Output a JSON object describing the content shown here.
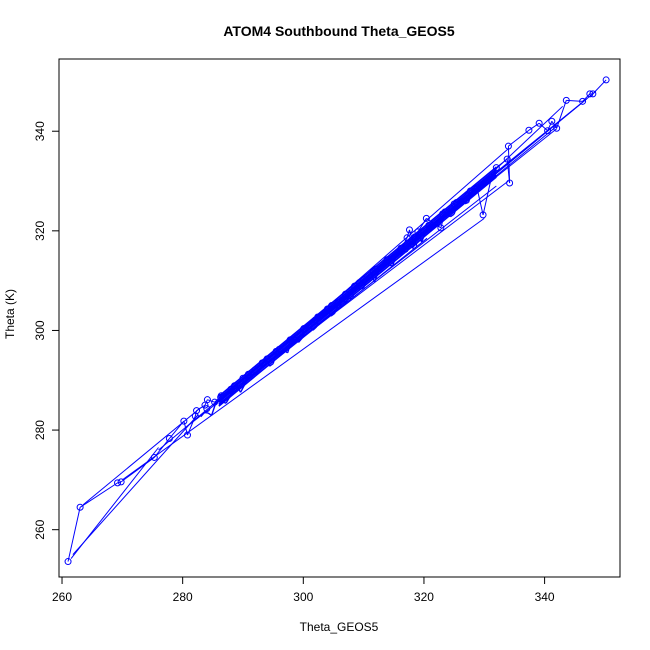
{
  "chart_data": {
    "type": "scatter",
    "title": "ATOM4 Southbound Theta_GEOS5",
    "xlabel": "Theta_GEOS5",
    "ylabel": "Theta (K)",
    "xlim": [
      259.5,
      352.5
    ],
    "ylim": [
      250.5,
      354.5
    ],
    "xticks": [
      260,
      280,
      300,
      320,
      340
    ],
    "yticks": [
      260,
      280,
      300,
      320,
      340
    ],
    "grid": false,
    "legend": "none",
    "style": "points connected by lines (type='o')",
    "color": "#0000ff",
    "points": [
      [
        261.0,
        253.6
      ],
      [
        263.0,
        264.5
      ],
      [
        269.2,
        269.4
      ],
      [
        269.8,
        269.6
      ],
      [
        275.3,
        274.5
      ],
      [
        277.8,
        278.3
      ],
      [
        280.2,
        281.8
      ],
      [
        280.8,
        279.0
      ],
      [
        282.1,
        282.8
      ],
      [
        282.3,
        283.9
      ],
      [
        283.7,
        285.0
      ],
      [
        284.1,
        286.1
      ],
      [
        285.3,
        285.6
      ],
      [
        286.4,
        286.9
      ],
      [
        288.0,
        288.2
      ],
      [
        290.0,
        290.4
      ],
      [
        292.0,
        292.1
      ],
      [
        294.0,
        294.3
      ],
      [
        296.0,
        296.2
      ],
      [
        298.0,
        298.0
      ],
      [
        300.0,
        300.2
      ],
      [
        302.0,
        302.1
      ],
      [
        304.0,
        304.3
      ],
      [
        305.8,
        305.6
      ],
      [
        307.8,
        307.0
      ],
      [
        308.5,
        308.9
      ],
      [
        310.0,
        310.2
      ],
      [
        312.0,
        312.3
      ],
      [
        314.0,
        314.2
      ],
      [
        316.0,
        315.8
      ],
      [
        317.2,
        318.6
      ],
      [
        317.6,
        320.2
      ],
      [
        318.3,
        317.1
      ],
      [
        319.0,
        319.8
      ],
      [
        320.4,
        322.5
      ],
      [
        322.8,
        320.6
      ],
      [
        323.5,
        323.8
      ],
      [
        325.0,
        325.4
      ],
      [
        327.3,
        327.2
      ],
      [
        328.8,
        328.6
      ],
      [
        329.8,
        323.2
      ],
      [
        331.2,
        330.8
      ],
      [
        332.0,
        332.7
      ],
      [
        333.8,
        334.4
      ],
      [
        334.2,
        329.6
      ],
      [
        334.0,
        337.0
      ],
      [
        337.4,
        340.2
      ],
      [
        339.1,
        341.6
      ],
      [
        340.5,
        340.1
      ],
      [
        341.2,
        342.0
      ],
      [
        342.0,
        340.6
      ],
      [
        343.6,
        346.2
      ],
      [
        346.3,
        346.0
      ],
      [
        347.5,
        347.5
      ],
      [
        348.0,
        347.5
      ],
      [
        350.2,
        350.3
      ]
    ],
    "extra_segments": [
      [
        261.5,
        254.2,
        276.0,
        276.5
      ],
      [
        261.8,
        255.0,
        282.5,
        283.0
      ],
      [
        263.5,
        265.0,
        283.0,
        284.5
      ],
      [
        270.0,
        270.0,
        330.0,
        322.5
      ],
      [
        281.0,
        281.0,
        332.0,
        329.0
      ],
      [
        285.0,
        285.0,
        334.0,
        330.0
      ],
      [
        300.0,
        300.0,
        342.0,
        340.5
      ],
      [
        310.0,
        309.5,
        346.0,
        345.5
      ],
      [
        290.0,
        289.5,
        342.0,
        341.0
      ],
      [
        276.0,
        276.0,
        320.0,
        320.5
      ],
      [
        300.0,
        300.5,
        334.0,
        336.5
      ],
      [
        318.0,
        316.5,
        343.0,
        345.0
      ],
      [
        305.0,
        305.0,
        347.0,
        346.5
      ],
      [
        286.0,
        285.0,
        320.5,
        318.5
      ],
      [
        296.0,
        296.5,
        348.5,
        348.0
      ]
    ]
  }
}
